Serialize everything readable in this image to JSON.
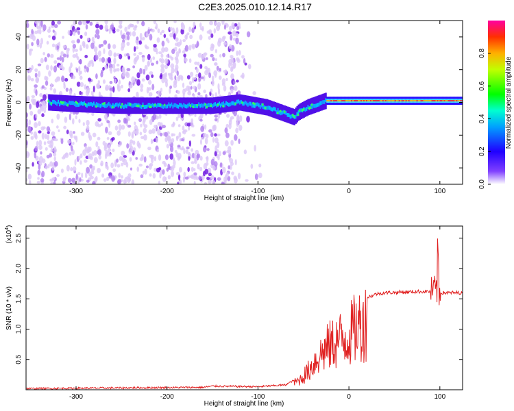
{
  "title": "C2E3.2025.010.12.14.R17",
  "chart_data": [
    {
      "type": "heatmap",
      "xlabel": "Height of straight line (km)",
      "ylabel": "Frequency (Hz)",
      "xlim": [
        -355,
        125
      ],
      "ylim": [
        -50,
        50
      ],
      "xticks": [
        "-300",
        "-200",
        "-100",
        "0",
        "100"
      ],
      "yticks": [
        "-40",
        "-20",
        "0",
        "20",
        "40"
      ],
      "colorbar": {
        "label": "Normalized spectral amplitude",
        "ticks": [
          "0.0",
          "0.2",
          "0.4",
          "0.6",
          "0.8"
        ],
        "range": [
          0,
          1
        ]
      },
      "ridge": {
        "x": [
          -330,
          -300,
          -250,
          -200,
          -150,
          -120,
          -100,
          -90,
          -80,
          -70,
          -60,
          -55,
          -45,
          -35,
          -25,
          -20,
          -10,
          0,
          50,
          90,
          100,
          125
        ],
        "y": [
          0,
          -1,
          -2,
          -2,
          -2,
          0,
          -2,
          -3,
          -5,
          -7,
          -9,
          -6,
          -3,
          -1,
          1,
          1,
          1,
          1,
          1,
          1,
          1,
          1
        ]
      }
    },
    {
      "type": "line",
      "xlabel": "Height of straight line (km)",
      "ylabel": "SNR (10 * v/v)",
      "yscale_label_base": "(x10",
      "yscale_label_exp": "4",
      "xlim": [
        -355,
        125
      ],
      "ylim": [
        0,
        2.7
      ],
      "xticks": [
        "-300",
        "-200",
        "-100",
        "0",
        "100"
      ],
      "yticks": [
        "0.5",
        "1.0",
        "1.5",
        "2.0",
        "2.5"
      ],
      "color": "#e02020",
      "envelope": {
        "x": [
          -355,
          -160,
          -150,
          -100,
          -70,
          -55,
          -45,
          -35,
          -25,
          -15,
          0,
          10,
          20,
          30,
          40,
          60,
          80,
          90,
          95,
          100,
          110,
          125
        ],
        "y": [
          0.02,
          0.04,
          0.06,
          0.05,
          0.08,
          0.2,
          0.4,
          0.7,
          0.9,
          1.05,
          1.2,
          1.4,
          1.52,
          1.58,
          1.6,
          1.61,
          1.62,
          1.62,
          1.65,
          1.6,
          1.6,
          1.6
        ]
      }
    }
  ]
}
